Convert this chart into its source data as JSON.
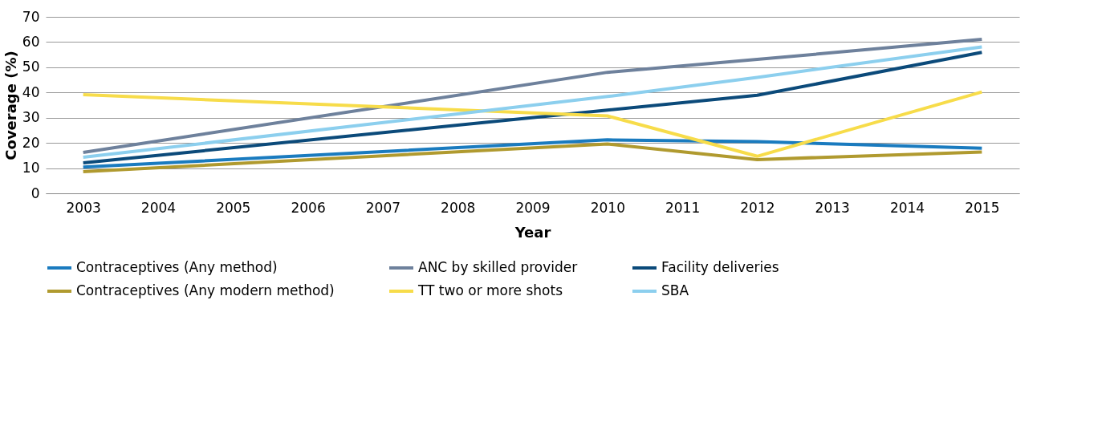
{
  "chart_data": {
    "type": "line",
    "xlabel": "Year",
    "ylabel": "Coverage (%)",
    "xlim": [
      2002.5,
      2015.5
    ],
    "xticks": [
      2003,
      2004,
      2005,
      2006,
      2007,
      2008,
      2009,
      2010,
      2011,
      2012,
      2013,
      2014,
      2015
    ],
    "ylim": [
      0,
      70
    ],
    "yticks": [
      0,
      10,
      20,
      30,
      40,
      50,
      60,
      70
    ],
    "grid": "y",
    "legend": "bottom",
    "marker": "none",
    "line_style": "solid",
    "series": [
      {
        "name": "Contraceptives (Any method)",
        "color": "#1a7bbf",
        "x": [
          2003,
          2010,
          2012,
          2015
        ],
        "values": [
          10.4,
          21.2,
          20.5,
          17.9
        ]
      },
      {
        "name": "ANC by skilled provider",
        "color": "#6e819c",
        "x": [
          2003,
          2010,
          2012,
          2015
        ],
        "values": [
          16.2,
          48.0,
          53.1,
          61.1
        ]
      },
      {
        "name": "Facility deliveries",
        "color": "#0b4a7a",
        "x": [
          2003,
          2010,
          2012,
          2015
        ],
        "values": [
          12.1,
          33.0,
          38.9,
          55.9
        ]
      },
      {
        "name": "Contraceptives (Any modern method)",
        "color": "#b09a2f",
        "x": [
          2003,
          2010,
          2012,
          2015
        ],
        "values": [
          8.6,
          19.6,
          13.4,
          16.4
        ]
      },
      {
        "name": "TT two or more shots",
        "color": "#f7dc4a",
        "x": [
          2003,
          2010,
          2012,
          2015
        ],
        "values": [
          39.1,
          30.7,
          14.7,
          40.2
        ]
      },
      {
        "name": "SBA",
        "color": "#8ccfee",
        "x": [
          2003,
          2010,
          2012,
          2015
        ],
        "values": [
          14.3,
          38.4,
          46.0,
          58.1
        ]
      }
    ]
  }
}
